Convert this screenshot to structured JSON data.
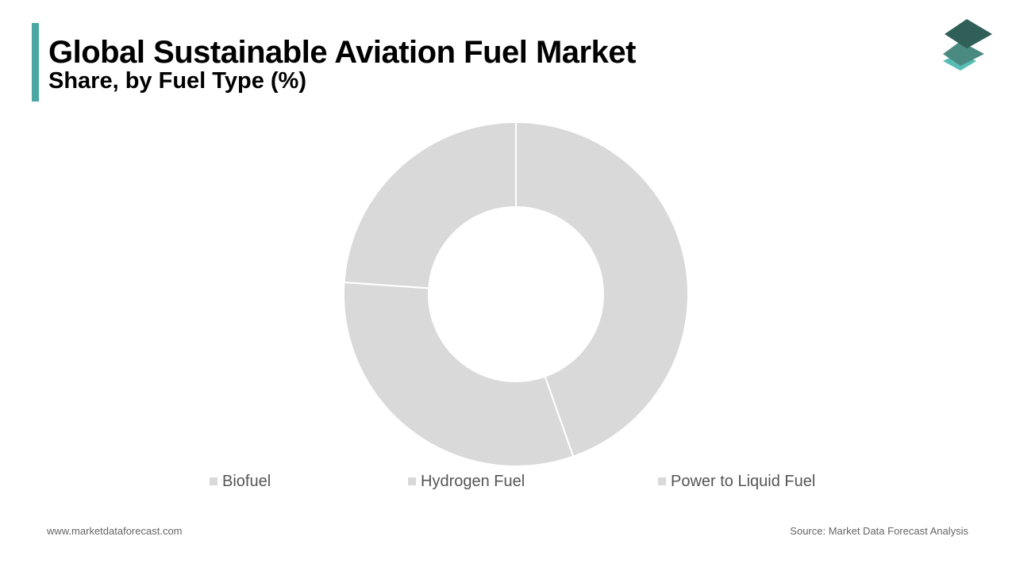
{
  "header": {
    "title": "Global Sustainable Aviation Fuel Market",
    "subtitle": "Share, by Fuel Type (%)"
  },
  "brand": {
    "accent_color": "#4aa7a4",
    "logo_icon": "stacked-layers-icon",
    "logo_colors": [
      "#2f5f57",
      "#4b8a81",
      "#56bdb5"
    ]
  },
  "chart_data": {
    "type": "pie",
    "variant": "donut",
    "categories": [
      "Biofuel",
      "Hydrogen Fuel",
      "Power to Liquid Fuel"
    ],
    "values": [
      44.6,
      31.5,
      23.9
    ],
    "colors": [
      "#d9d9d9",
      "#d9d9d9",
      "#d9d9d9"
    ],
    "legend_position": "bottom",
    "data_labels": "none"
  },
  "footer": {
    "website": "www.marketdataforecast.com",
    "source": "Source: Market Data Forecast Analysis"
  }
}
